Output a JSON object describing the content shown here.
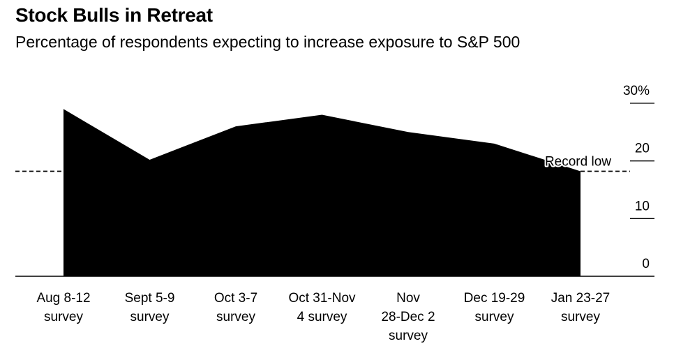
{
  "title": "Stock Bulls in Retreat",
  "subtitle": "Percentage of respondents expecting to increase exposure to S&P 500",
  "chart_data": {
    "type": "area",
    "title": "Stock Bulls in Retreat",
    "subtitle": "Percentage of respondents expecting to increase exposure to S&P 500",
    "categories": [
      [
        "Aug 8-12",
        "survey"
      ],
      [
        "Sept 5-9",
        "survey"
      ],
      [
        "Oct 3-7",
        "survey"
      ],
      [
        "Oct 31-Nov",
        "4 survey"
      ],
      [
        "Nov",
        "28-Dec 2",
        "survey"
      ],
      [
        "Dec 19-29",
        "survey"
      ],
      [
        "Jan 23-27",
        "survey"
      ]
    ],
    "values": [
      29,
      20.2,
      26,
      28,
      25,
      23,
      18.2
    ],
    "ylim": [
      0,
      30
    ],
    "yticks": [
      0,
      10,
      20,
      30
    ],
    "ytick_labels": [
      "0",
      "10",
      "20",
      "30%"
    ],
    "y_axis_position": "right",
    "reference_line": {
      "value": 18.2,
      "label": "Record low",
      "style": "dashed"
    },
    "series_color": "#000000",
    "grid": false
  }
}
